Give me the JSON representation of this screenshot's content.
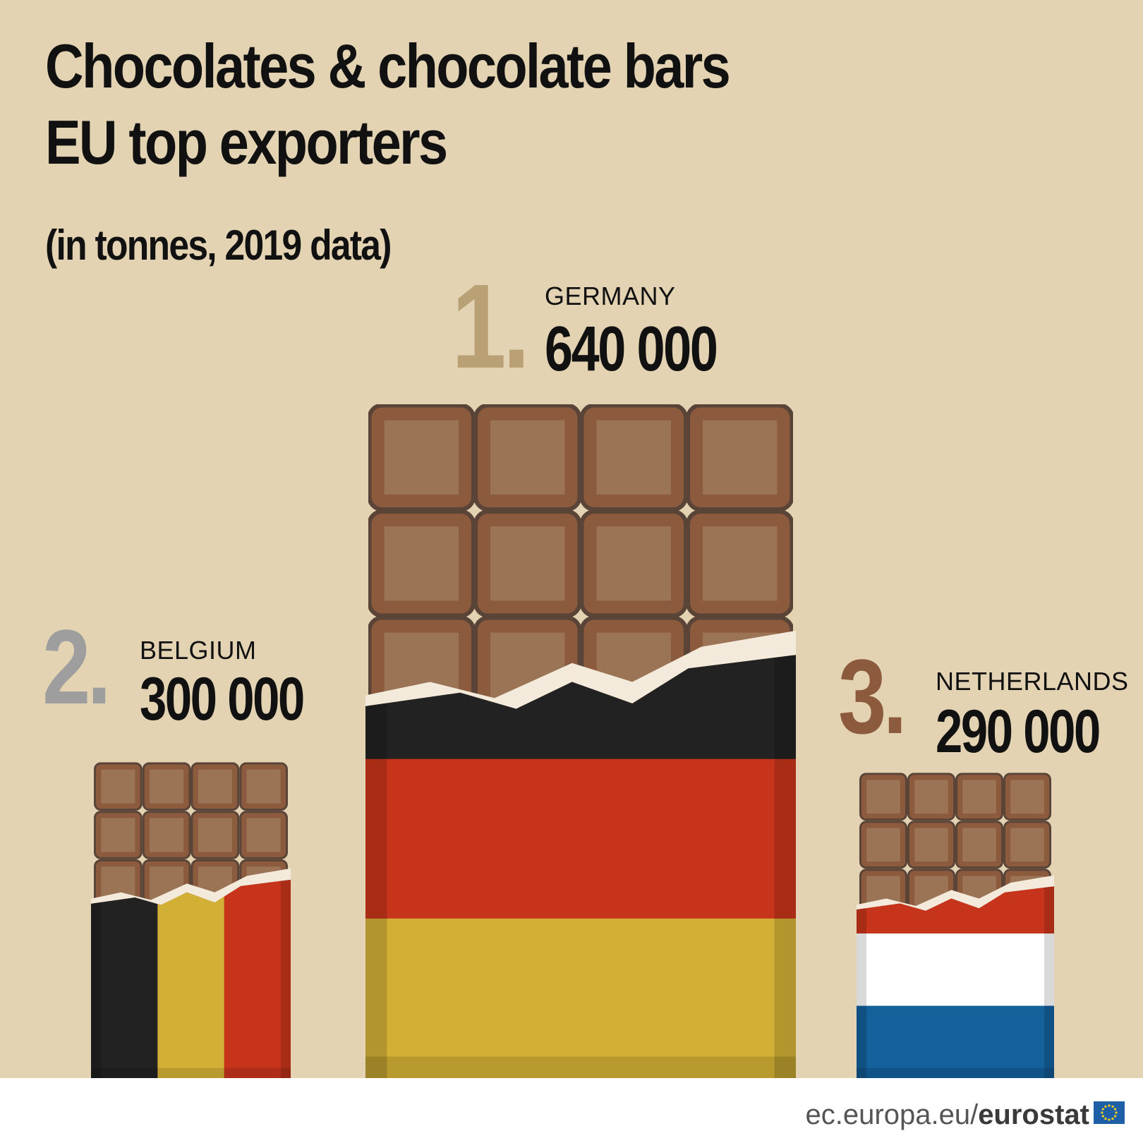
{
  "title_lines": [
    "Chocolates & chocolate bars",
    "EU top exporters"
  ],
  "subtitle": "(in tonnes, 2019 data)",
  "chart_data": {
    "type": "bar",
    "title": "Chocolates & chocolate bars EU top exporters",
    "subtitle": "(in tonnes, 2019 data)",
    "categories": [
      "GERMANY",
      "BELGIUM",
      "NETHERLANDS"
    ],
    "values": [
      640000,
      300000,
      290000
    ],
    "value_labels": [
      "640 000",
      "300 000",
      "290 000"
    ],
    "ranks": [
      "1.",
      "2.",
      "3."
    ],
    "xlabel": "",
    "ylabel": "",
    "grid": false
  },
  "ranks": [
    {
      "rank": "1.",
      "country": "GERMANY",
      "value": "640 000",
      "rank_color": "#b9a075",
      "flag": [
        "#222222",
        "#c7341c",
        "#d2b035"
      ],
      "flag_layout": "horizontal"
    },
    {
      "rank": "2.",
      "country": "BELGIUM",
      "value": "300 000",
      "rank_color": "#9e9e9e",
      "flag": [
        "#222222",
        "#d2b035",
        "#c7341c"
      ],
      "flag_layout": "vertical"
    },
    {
      "rank": "3.",
      "country": "NETHERLANDS",
      "value": "290 000",
      "rank_color": "#8c5a3c",
      "flag": [
        "#c7341c",
        "#ffffff",
        "#13609a"
      ],
      "flag_layout": "horizontal"
    }
  ],
  "colors": {
    "background": "#e3d3b3",
    "chocolate_outer": "#8c5a3c",
    "chocolate_square": "#9b7456",
    "chocolate_edge": "#5a4438",
    "foil": "#f3eadb"
  },
  "footer": {
    "domain": "ec.europa.eu/",
    "brand": "eurostat"
  }
}
